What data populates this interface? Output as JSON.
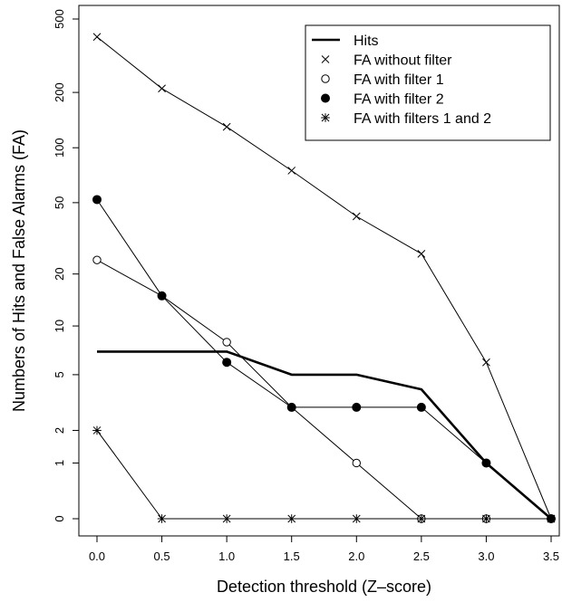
{
  "chart_data": {
    "type": "line",
    "xlabel": "Detection threshold (Z–score)",
    "ylabel": "Numbers of Hits and False Alarms (FA)",
    "y_scale": "log(1+y)",
    "xlim": [
      0.0,
      3.5
    ],
    "x_ticks": [
      "0.0",
      "0.5",
      "1.0",
      "1.5",
      "2.0",
      "2.5",
      "3.0",
      "3.5"
    ],
    "x_tick_values": [
      0.0,
      0.5,
      1.0,
      1.5,
      2.0,
      2.5,
      3.0,
      3.5
    ],
    "y_ticks": [
      "0",
      "1",
      "2",
      "5",
      "10",
      "20",
      "50",
      "100",
      "200",
      "500"
    ],
    "y_tick_values": [
      0,
      1,
      2,
      5,
      10,
      20,
      50,
      100,
      200,
      500
    ],
    "ylim": [
      0,
      500
    ],
    "grid": false,
    "legend_position": "top-right",
    "x": [
      0.0,
      0.5,
      1.0,
      1.5,
      2.0,
      2.5,
      3.0,
      3.5
    ],
    "series": [
      {
        "name": "Hits",
        "marker": "none",
        "line": "thick",
        "values": [
          7,
          7,
          7,
          5,
          5,
          4,
          1,
          0
        ]
      },
      {
        "name": "FA without filter",
        "marker": "x",
        "line": "thin",
        "values": [
          400,
          210,
          130,
          75,
          42,
          26,
          6,
          0
        ]
      },
      {
        "name": "FA with filter 1",
        "marker": "open-circle",
        "line": "thin",
        "values": [
          24,
          15,
          8,
          3,
          1,
          0,
          0,
          0
        ]
      },
      {
        "name": "FA with filter 2",
        "marker": "filled-circle",
        "line": "thin",
        "values": [
          52,
          15,
          6,
          3,
          3,
          3,
          1,
          0
        ]
      },
      {
        "name": "FA with filters 1 and 2",
        "marker": "asterisk",
        "line": "thin",
        "values": [
          2,
          0,
          0,
          0,
          0,
          0,
          0,
          0
        ]
      }
    ]
  }
}
